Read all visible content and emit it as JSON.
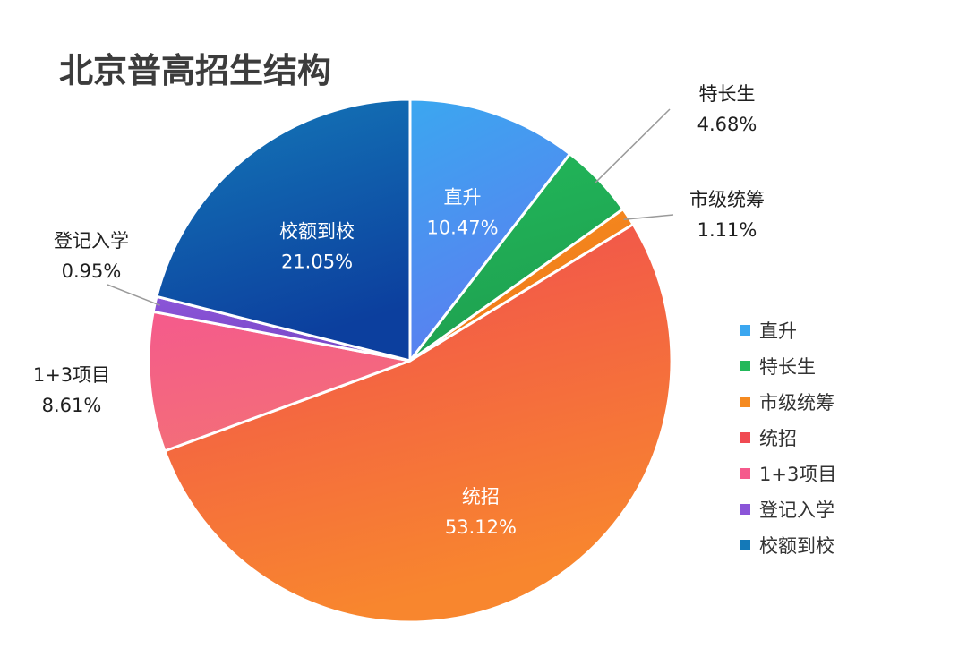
{
  "chart_data": {
    "type": "pie",
    "title": "北京普高招生结构",
    "legend_position": "right",
    "slices": [
      {
        "name": "直升",
        "value": 10.47,
        "label": "10.47%",
        "color": "#3ba7f0",
        "color2": "#5b7ef0"
      },
      {
        "name": "特长生",
        "value": 4.68,
        "label": "4.68%",
        "color": "#22b85a",
        "color2": "#1ea050"
      },
      {
        "name": "市级统筹",
        "value": 1.11,
        "label": "1.11%",
        "color": "#f58a20",
        "color2": "#f07a18"
      },
      {
        "name": "统招",
        "value": 53.12,
        "label": "53.12%",
        "color": "#f04a52",
        "color2": "#f8862e"
      },
      {
        "name": "1+3项目",
        "value": 8.61,
        "label": "8.61%",
        "color": "#f55a8c",
        "color2": "#f36e78"
      },
      {
        "name": "登记入学",
        "value": 0.95,
        "label": "0.95%",
        "color": "#8b55d8",
        "color2": "#7a48c8"
      },
      {
        "name": "校额到校",
        "value": 21.05,
        "label": "21.05%",
        "color": "#1479b8",
        "color2": "#0c3f9e"
      }
    ]
  }
}
